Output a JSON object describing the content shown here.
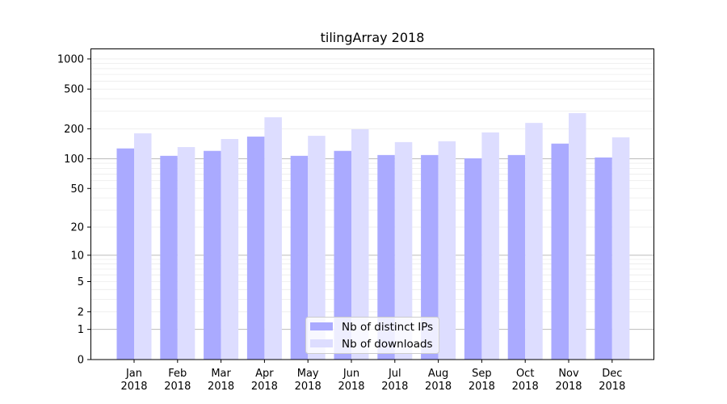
{
  "chart_data": {
    "type": "bar",
    "title": "tilingArray 2018",
    "xlabel": "",
    "ylabel": "",
    "yscale": "symlog (log of 1+value)",
    "ylim": [
      0,
      1270
    ],
    "yticks": [
      0,
      1,
      2,
      5,
      10,
      20,
      50,
      100,
      200,
      500,
      1000
    ],
    "grid": true,
    "legend_position": "bottom-center",
    "categories": [
      "Jan\n2018",
      "Feb\n2018",
      "Mar\n2018",
      "Apr\n2018",
      "May\n2018",
      "Jun\n2018",
      "Jul\n2018",
      "Aug\n2018",
      "Sep\n2018",
      "Oct\n2018",
      "Nov\n2018",
      "Dec\n2018"
    ],
    "category_months": [
      "Jan",
      "Feb",
      "Mar",
      "Apr",
      "May",
      "Jun",
      "Jul",
      "Aug",
      "Sep",
      "Oct",
      "Nov",
      "Dec"
    ],
    "category_year": "2018",
    "series": [
      {
        "name": "Nb of distinct IPs",
        "color": "#aaaaff",
        "values": [
          127,
          107,
          120,
          167,
          107,
          120,
          109,
          109,
          101,
          109,
          142,
          103
        ]
      },
      {
        "name": "Nb of downloads",
        "color": "#ddddff",
        "values": [
          180,
          131,
          158,
          261,
          170,
          198,
          147,
          150,
          184,
          229,
          287,
          164
        ]
      }
    ]
  }
}
